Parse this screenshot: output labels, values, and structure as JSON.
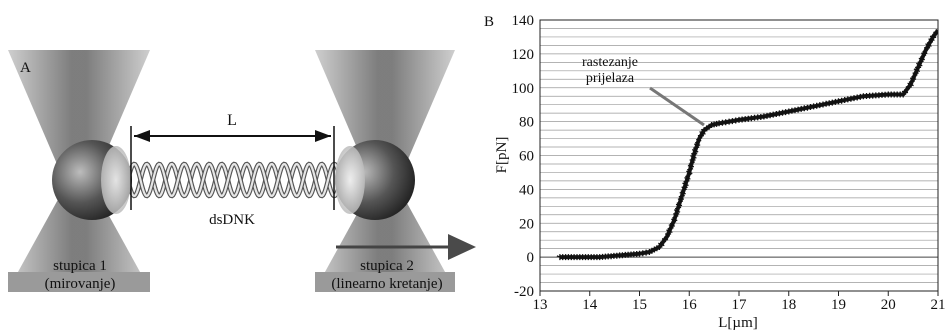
{
  "panel_a": {
    "panel_label": "A",
    "length_label": "L",
    "molecule_label": "dsDNK",
    "trap1_line1": "stupica 1",
    "trap1_line2": "(mirovanje)",
    "trap2_line1": "stupica 2",
    "trap2_line2": "(linearno kretanje)"
  },
  "panel_b": {
    "panel_label": "B",
    "annotation_line1": "rastezanje",
    "annotation_line2": "prijelaza"
  },
  "chart_data": {
    "type": "line",
    "title": "",
    "xlabel": "L[µm]",
    "ylabel": "F[pN]",
    "xlim": [
      13,
      21
    ],
    "ylim": [
      -20,
      140
    ],
    "grid": true,
    "x_ticks": [
      13,
      14,
      15,
      16,
      17,
      18,
      19,
      20,
      21
    ],
    "y_ticks": [
      -20,
      0,
      20,
      40,
      60,
      80,
      100,
      120,
      140
    ],
    "series": [
      {
        "x": [
          13.4,
          13.8,
          14.2,
          14.6,
          15.0,
          15.2,
          15.4,
          15.55,
          15.7,
          15.85,
          16.0,
          16.1,
          16.2,
          16.3,
          16.45,
          16.6,
          16.8,
          17.0,
          17.5,
          18.0,
          18.5,
          19.0,
          19.5,
          20.0,
          20.3,
          20.45,
          20.6,
          20.75,
          20.9,
          21.0
        ],
        "y": [
          0,
          0,
          0,
          1,
          2,
          3,
          6,
          12,
          22,
          36,
          50,
          61,
          70,
          75,
          78,
          79,
          80,
          81,
          83,
          86,
          89,
          92,
          95,
          96,
          96,
          102,
          112,
          122,
          130,
          134
        ]
      }
    ]
  }
}
